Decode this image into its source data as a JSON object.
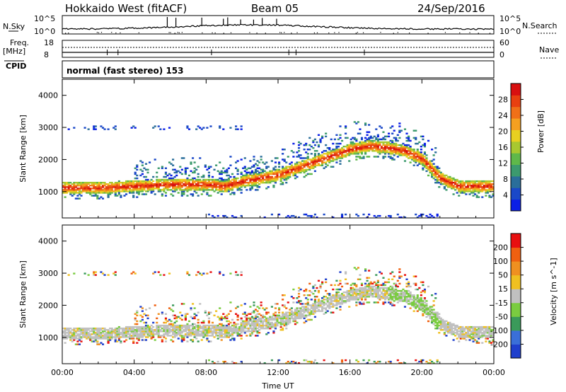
{
  "header": {
    "station": "Hokkaido West (fitACF)",
    "beam": "Beam 05",
    "date": "24/Sep/2016"
  },
  "summary_panels": {
    "nsky_label": "N.Sky",
    "nsky_ticks": [
      "10^5",
      "10^0"
    ],
    "nsearch_label": "N.Search",
    "nsearch_ticks": [
      "10^5",
      "10^0"
    ],
    "freq_label": "Freq.",
    "freq_unit": "[MHz]",
    "freq_ticks": [
      "18",
      "8"
    ],
    "nave_label": "Nave",
    "nave_ticks": [
      "60",
      "0"
    ],
    "cpid_label": "CPID",
    "cpid_value": "normal (fast stereo) 153"
  },
  "chart_data": [
    {
      "type": "heatmap",
      "name": "power",
      "ylabel": "Slant Range [km]",
      "yticks": [
        1000,
        2000,
        3000,
        4000
      ],
      "ylim": [
        180,
        4500
      ],
      "xlabel": "Time UT",
      "xticks": [
        "00:00",
        "04:00",
        "08:00",
        "12:00",
        "16:00",
        "20:00",
        "00:00"
      ],
      "xlim_hours": [
        0,
        24
      ],
      "colorbar": {
        "label": "Power [dB]",
        "ticks": [
          "4",
          "8",
          "12",
          "16",
          "20",
          "24",
          "28"
        ],
        "colors": [
          "#0a1fe6",
          "#1a48c8",
          "#2a6e9a",
          "#3c9a6e",
          "#5fb84a",
          "#a8c830",
          "#e8d020",
          "#f5a020",
          "#f07018",
          "#e84010",
          "#d81010"
        ]
      },
      "band_main_center_km": [
        [
          0,
          1100
        ],
        [
          2,
          1100
        ],
        [
          4,
          1150
        ],
        [
          6,
          1200
        ],
        [
          8,
          1200
        ],
        [
          9,
          1150
        ],
        [
          10,
          1300
        ],
        [
          11,
          1400
        ],
        [
          12,
          1500
        ],
        [
          13,
          1700
        ],
        [
          14,
          1900
        ],
        [
          15,
          2100
        ],
        [
          16,
          2300
        ],
        [
          17,
          2400
        ],
        [
          18,
          2350
        ],
        [
          19,
          2250
        ],
        [
          20,
          2000
        ],
        [
          21,
          1400
        ],
        [
          22,
          1150
        ],
        [
          24,
          1150
        ]
      ]
    },
    {
      "type": "heatmap",
      "name": "velocity",
      "ylabel": "Slant Range [km]",
      "yticks": [
        1000,
        2000,
        3000,
        4000
      ],
      "ylim": [
        180,
        4500
      ],
      "xlabel": "Time UT",
      "xticks": [
        "00:00",
        "04:00",
        "08:00",
        "12:00",
        "16:00",
        "20:00",
        "00:00"
      ],
      "xlim_hours": [
        0,
        24
      ],
      "colorbar": {
        "label": "Velocity [m s^-1]",
        "ticks": [
          "200",
          "100",
          "50",
          "15",
          "-15",
          "-50",
          "-100",
          "-200"
        ],
        "colors": [
          "#1f3fcc",
          "#3a6fd8",
          "#3a9a5a",
          "#7acc40",
          "#c0c0c0",
          "#f0c020",
          "#f09020",
          "#f06010",
          "#e81010"
        ]
      }
    }
  ]
}
